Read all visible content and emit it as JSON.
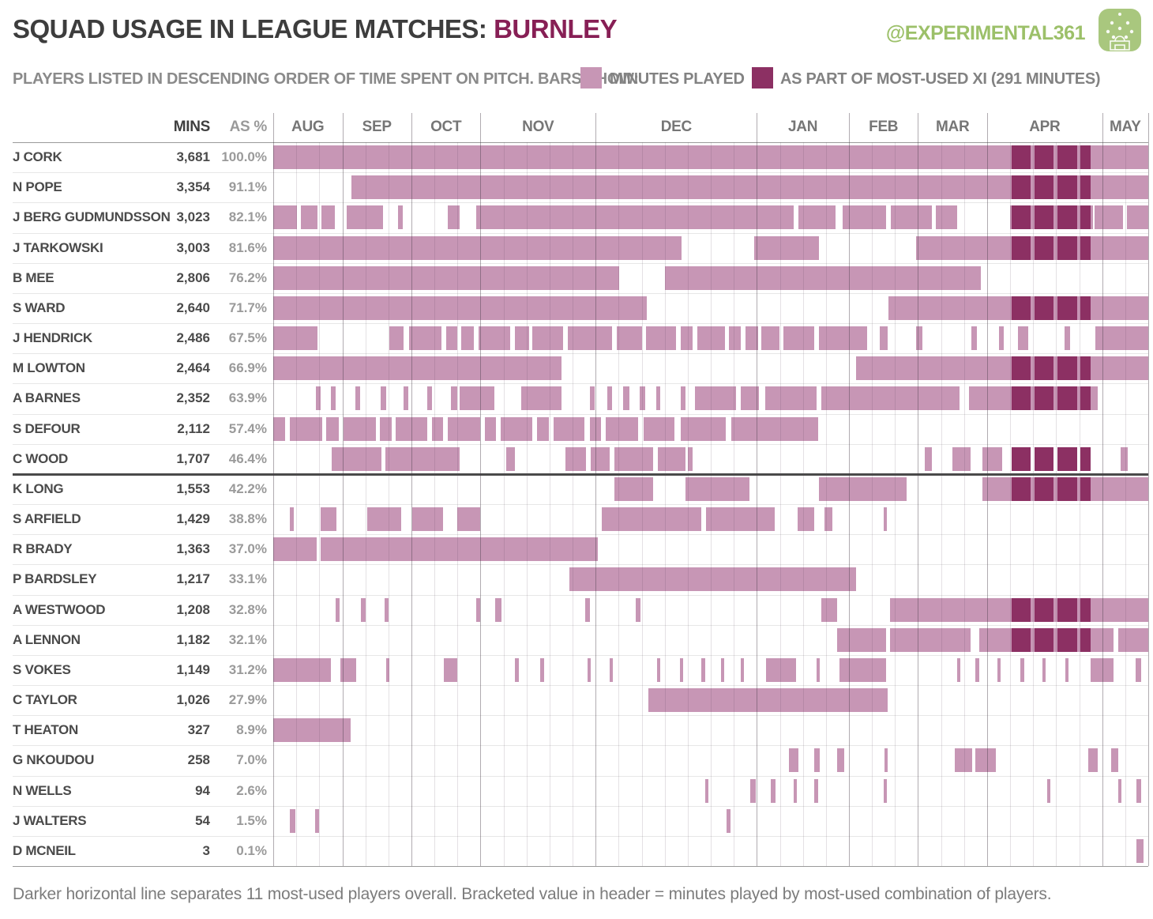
{
  "header": {
    "title_prefix": "SQUAD USAGE IN LEAGUE MATCHES: ",
    "team": "BURNLEY",
    "handle": "@EXPERIMENTAL361"
  },
  "legend": {
    "intro": "PLAYERS LISTED IN DESCENDING ORDER OF TIME SPENT ON PITCH.  BARS SHOW:",
    "minutes_label": "MINUTES PLAYED",
    "xi_label": "AS PART OF MOST-USED XI (291 MINUTES)"
  },
  "table": {
    "mins_header": "MINS",
    "pct_header": "AS %"
  },
  "footer": {
    "note": "Darker horizontal line separates 11 most-used players overall.   Bracketed value in header = minutes played by most-used combination of players."
  },
  "colors": {
    "light_bar": "#c796b5",
    "dark_bar": "#8c3063",
    "team": "#871f55",
    "green": "#9cc069",
    "icon_green": "#a9c77e",
    "grid_slot": "rgba(90,70,85,0.16)",
    "grid_month": "rgba(70,58,70,0.42)",
    "row_line": "#e7e7e7",
    "frame_line": "#9a9a9a",
    "separator": "#4a4a4a"
  },
  "chart_data": {
    "type": "heatmap",
    "title": "Squad usage in league matches: Burnley",
    "subtitle": "Players listed in descending order of time spent on pitch",
    "x_unit": "league match slot (38 matches, Aug-May)",
    "total_slots": 38,
    "most_used_xi_minutes": 291,
    "months": [
      {
        "label": "AUG",
        "matches": 3
      },
      {
        "label": "SEP",
        "matches": 3
      },
      {
        "label": "OCT",
        "matches": 3
      },
      {
        "label": "NOV",
        "matches": 5
      },
      {
        "label": "DEC",
        "matches": 7
      },
      {
        "label": "JAN",
        "matches": 4
      },
      {
        "label": "FEB",
        "matches": 3
      },
      {
        "label": "MAR",
        "matches": 3
      },
      {
        "label": "APR",
        "matches": 5
      },
      {
        "label": "MAY",
        "matches": 2
      }
    ],
    "legend": [
      {
        "shade": "light",
        "label": "Minutes played"
      },
      {
        "shade": "dark",
        "label": "As part of most-used XI (291 minutes)"
      }
    ],
    "players": [
      {
        "name": "J CORK",
        "mins": "3,681",
        "pct": "100.0%",
        "light": [
          [
            0,
            38
          ]
        ],
        "dark": [
          [
            32.05,
            32.9
          ],
          [
            33.05,
            33.9
          ],
          [
            34.05,
            34.9
          ],
          [
            35.05,
            35.5
          ]
        ]
      },
      {
        "name": "N POPE",
        "mins": "3,354",
        "pct": "91.1%",
        "light": [
          [
            3.4,
            38
          ]
        ],
        "dark": [
          [
            32.05,
            32.9
          ],
          [
            33.05,
            33.9
          ],
          [
            34.05,
            34.9
          ],
          [
            35.05,
            35.5
          ]
        ]
      },
      {
        "name": "J BERG GUDMUNDSSON",
        "mins": "3,023",
        "pct": "82.1%",
        "light": [
          [
            0,
            1.02
          ],
          [
            1.2,
            1.92
          ],
          [
            2.1,
            2.68
          ],
          [
            3.18,
            4.78
          ],
          [
            5.4,
            5.62
          ],
          [
            7.58,
            8.1
          ],
          [
            8.82,
            22.6
          ],
          [
            22.82,
            24.42
          ],
          [
            24.72,
            26.6
          ],
          [
            26.82,
            28.6
          ],
          [
            28.78,
            29.7
          ],
          [
            31.98,
            35.6
          ],
          [
            35.68,
            36.9
          ],
          [
            37.08,
            38
          ]
        ],
        "dark": [
          [
            32.05,
            32.9
          ],
          [
            33.05,
            33.9
          ],
          [
            34.05,
            34.9
          ],
          [
            35.05,
            35.5
          ]
        ]
      },
      {
        "name": "J TARKOWSKI",
        "mins": "3,003",
        "pct": "81.6%",
        "light": [
          [
            0,
            17.72
          ],
          [
            20.9,
            23.7
          ],
          [
            27.92,
            38
          ]
        ],
        "dark": [
          [
            32.05,
            32.9
          ],
          [
            33.05,
            33.9
          ],
          [
            34.05,
            34.9
          ],
          [
            35.05,
            35.5
          ]
        ]
      },
      {
        "name": "B MEE",
        "mins": "2,806",
        "pct": "76.2%",
        "light": [
          [
            0,
            15.02
          ],
          [
            17.02,
            30.72
          ]
        ],
        "dark": []
      },
      {
        "name": "S WARD",
        "mins": "2,640",
        "pct": "71.7%",
        "light": [
          [
            0,
            16.22
          ],
          [
            26.72,
            38
          ]
        ],
        "dark": [
          [
            32.05,
            32.9
          ],
          [
            33.05,
            33.9
          ],
          [
            34.05,
            34.9
          ],
          [
            35.05,
            35.5
          ]
        ]
      },
      {
        "name": "J HENDRICK",
        "mins": "2,486",
        "pct": "67.5%",
        "light": [
          [
            0,
            1.92
          ],
          [
            5.05,
            5.65
          ],
          [
            5.9,
            7.3
          ],
          [
            7.5,
            8.0
          ],
          [
            8.15,
            8.7
          ],
          [
            8.9,
            10.3
          ],
          [
            10.5,
            11.1
          ],
          [
            11.25,
            12.6
          ],
          [
            12.8,
            14.7
          ],
          [
            14.9,
            16.0
          ],
          [
            16.2,
            17.5
          ],
          [
            17.7,
            18.2
          ],
          [
            18.4,
            19.6
          ],
          [
            19.8,
            20.3
          ],
          [
            20.5,
            21.05
          ],
          [
            21.2,
            22.0
          ],
          [
            22.15,
            23.5
          ],
          [
            23.7,
            25.8
          ],
          [
            26.35,
            26.7
          ],
          [
            27.9,
            28.2
          ],
          [
            30.3,
            30.55
          ],
          [
            31.5,
            31.72
          ],
          [
            32.35,
            32.8
          ],
          [
            34.35,
            34.6
          ],
          [
            35.7,
            38
          ]
        ],
        "dark": []
      },
      {
        "name": "M LOWTON",
        "mins": "2,464",
        "pct": "66.9%",
        "light": [
          [
            0,
            12.52
          ],
          [
            25.3,
            38
          ]
        ],
        "dark": [
          [
            32.05,
            32.9
          ],
          [
            33.05,
            33.9
          ],
          [
            34.05,
            34.9
          ],
          [
            35.05,
            35.5
          ]
        ]
      },
      {
        "name": "A BARNES",
        "mins": "2,352",
        "pct": "63.9%",
        "light": [
          [
            1.85,
            2.05
          ],
          [
            2.5,
            2.72
          ],
          [
            3.55,
            3.77
          ],
          [
            4.65,
            4.92
          ],
          [
            5.65,
            5.87
          ],
          [
            6.7,
            6.9
          ],
          [
            7.7,
            8.0
          ],
          [
            8.1,
            9.6
          ],
          [
            10.77,
            12.52
          ],
          [
            13.75,
            13.95
          ],
          [
            14.5,
            14.7
          ],
          [
            15.2,
            15.48
          ],
          [
            15.9,
            16.15
          ],
          [
            16.62,
            16.82
          ],
          [
            17.7,
            17.9
          ],
          [
            18.3,
            20.1
          ],
          [
            20.3,
            21.1
          ],
          [
            21.35,
            23.6
          ],
          [
            23.8,
            29.8
          ],
          [
            30.2,
            35.8
          ]
        ],
        "dark": [
          [
            32.05,
            32.9
          ],
          [
            33.05,
            33.9
          ],
          [
            34.05,
            34.9
          ],
          [
            35.05,
            35.5
          ]
        ]
      },
      {
        "name": "S DEFOUR",
        "mins": "2,112",
        "pct": "57.4%",
        "light": [
          [
            0,
            0.52
          ],
          [
            0.72,
            2.12
          ],
          [
            2.3,
            2.86
          ],
          [
            3.05,
            4.45
          ],
          [
            4.64,
            5.13
          ],
          [
            5.3,
            6.7
          ],
          [
            6.9,
            7.39
          ],
          [
            7.58,
            8.98
          ],
          [
            9.18,
            9.67
          ],
          [
            9.89,
            11.26
          ],
          [
            11.45,
            11.97
          ],
          [
            12.16,
            13.5
          ],
          [
            13.76,
            14.25
          ],
          [
            14.44,
            15.84
          ],
          [
            16.08,
            17.43
          ],
          [
            17.68,
            19.64
          ],
          [
            19.88,
            23.68
          ]
        ],
        "dark": []
      },
      {
        "name": "C WOOD",
        "mins": "1,707",
        "pct": "46.4%",
        "light": [
          [
            2.55,
            4.7
          ],
          [
            4.87,
            8.1
          ],
          [
            10.1,
            10.5
          ],
          [
            12.7,
            13.6
          ],
          [
            13.8,
            14.6
          ],
          [
            14.82,
            16.5
          ],
          [
            16.7,
            17.9
          ],
          [
            18.0,
            18.22
          ],
          [
            28.3,
            28.6
          ],
          [
            29.5,
            30.3
          ],
          [
            30.8,
            31.66
          ],
          [
            36.8,
            37.1
          ]
        ],
        "dark": [
          [
            32.05,
            32.9
          ],
          [
            33.05,
            33.9
          ],
          [
            34.05,
            34.9
          ],
          [
            35.05,
            35.5
          ]
        ]
      },
      {
        "name": "K LONG",
        "mins": "1,553",
        "pct": "42.2%",
        "light": [
          [
            14.82,
            16.5
          ],
          [
            17.9,
            20.7
          ],
          [
            23.7,
            27.5
          ],
          [
            30.8,
            38
          ]
        ],
        "dark": [
          [
            32.05,
            32.9
          ],
          [
            33.05,
            33.9
          ],
          [
            34.05,
            34.9
          ],
          [
            35.05,
            35.5
          ]
        ]
      },
      {
        "name": "S ARFIELD",
        "mins": "1,429",
        "pct": "38.8%",
        "light": [
          [
            0.72,
            0.9
          ],
          [
            2.07,
            2.73
          ],
          [
            4.08,
            5.55
          ],
          [
            6.04,
            7.39
          ],
          [
            8.0,
            8.98
          ],
          [
            14.25,
            18.58
          ],
          [
            18.78,
            21.77
          ],
          [
            22.77,
            23.48
          ],
          [
            23.92,
            24.29
          ],
          [
            26.5,
            26.66
          ]
        ],
        "dark": []
      },
      {
        "name": "R BRADY",
        "mins": "1,363",
        "pct": "37.0%",
        "light": [
          [
            0,
            1.9
          ],
          [
            2.05,
            14.1
          ]
        ],
        "dark": []
      },
      {
        "name": "P BARDSLEY",
        "mins": "1,217",
        "pct": "33.1%",
        "light": [
          [
            12.85,
            25.3
          ]
        ],
        "dark": []
      },
      {
        "name": "A WESTWOOD",
        "mins": "1,208",
        "pct": "32.8%",
        "light": [
          [
            2.7,
            2.9
          ],
          [
            3.8,
            4.0
          ],
          [
            4.85,
            5.02
          ],
          [
            8.8,
            9.0
          ],
          [
            9.65,
            9.9
          ],
          [
            13.55,
            13.75
          ],
          [
            15.75,
            15.95
          ],
          [
            23.8,
            24.5
          ],
          [
            26.8,
            38
          ]
        ],
        "dark": [
          [
            32.05,
            32.9
          ],
          [
            33.05,
            33.9
          ],
          [
            34.05,
            34.9
          ],
          [
            35.05,
            35.5
          ]
        ]
      },
      {
        "name": "A LENNON",
        "mins": "1,182",
        "pct": "32.1%",
        "light": [
          [
            24.5,
            26.6
          ],
          [
            26.8,
            30.3
          ],
          [
            30.65,
            36.5
          ],
          [
            36.7,
            38
          ]
        ],
        "dark": [
          [
            32.05,
            32.9
          ],
          [
            33.05,
            33.9
          ],
          [
            34.05,
            34.9
          ],
          [
            35.05,
            35.5
          ]
        ]
      },
      {
        "name": "S VOKES",
        "mins": "1,149",
        "pct": "31.2%",
        "light": [
          [
            0,
            2.5
          ],
          [
            2.9,
            3.6
          ],
          [
            4.9,
            5.05
          ],
          [
            7.4,
            8.0
          ],
          [
            10.5,
            10.65
          ],
          [
            11.6,
            11.75
          ],
          [
            13.65,
            13.8
          ],
          [
            14.6,
            14.75
          ],
          [
            16.65,
            16.8
          ],
          [
            17.65,
            17.8
          ],
          [
            18.6,
            18.75
          ],
          [
            19.45,
            19.6
          ],
          [
            20.3,
            20.45
          ],
          [
            21.4,
            22.7
          ],
          [
            23.6,
            23.75
          ],
          [
            24.6,
            26.6
          ],
          [
            29.7,
            29.85
          ],
          [
            30.5,
            30.65
          ],
          [
            31.45,
            31.6
          ],
          [
            32.45,
            32.6
          ],
          [
            33.4,
            33.55
          ],
          [
            34.4,
            34.55
          ],
          [
            35.5,
            36.5
          ],
          [
            37.45,
            37.7
          ]
        ],
        "dark": []
      },
      {
        "name": "C TAYLOR",
        "mins": "1,026",
        "pct": "27.9%",
        "light": [
          [
            16.3,
            26.7
          ]
        ],
        "dark": []
      },
      {
        "name": "T HEATON",
        "mins": "327",
        "pct": "8.9%",
        "light": [
          [
            0,
            3.35
          ]
        ],
        "dark": []
      },
      {
        "name": "G NKOUDOU",
        "mins": "258",
        "pct": "7.0%",
        "light": [
          [
            22.4,
            22.8
          ],
          [
            23.5,
            23.75
          ],
          [
            24.5,
            24.8
          ],
          [
            26.55,
            26.7
          ],
          [
            29.6,
            30.35
          ],
          [
            30.5,
            31.4
          ],
          [
            35.4,
            35.8
          ],
          [
            36.4,
            36.7
          ]
        ],
        "dark": []
      },
      {
        "name": "N WELLS",
        "mins": "94",
        "pct": "2.6%",
        "light": [
          [
            18.75,
            18.9
          ],
          [
            20.7,
            20.95
          ],
          [
            21.6,
            21.8
          ],
          [
            22.6,
            22.75
          ],
          [
            23.5,
            23.65
          ],
          [
            26.5,
            26.65
          ],
          [
            33.6,
            33.75
          ],
          [
            36.7,
            36.85
          ],
          [
            37.5,
            37.7
          ]
        ],
        "dark": []
      },
      {
        "name": "J WALTERS",
        "mins": "54",
        "pct": "1.5%",
        "light": [
          [
            0.73,
            0.97
          ],
          [
            1.8,
            2.0
          ],
          [
            19.7,
            19.85
          ]
        ],
        "dark": []
      },
      {
        "name": "D MCNEIL",
        "mins": "3",
        "pct": "0.1%",
        "light": [
          [
            37.5,
            37.78
          ]
        ],
        "dark": []
      }
    ],
    "layout": {
      "most_used_separator_after_row": 11,
      "grid": true
    }
  }
}
